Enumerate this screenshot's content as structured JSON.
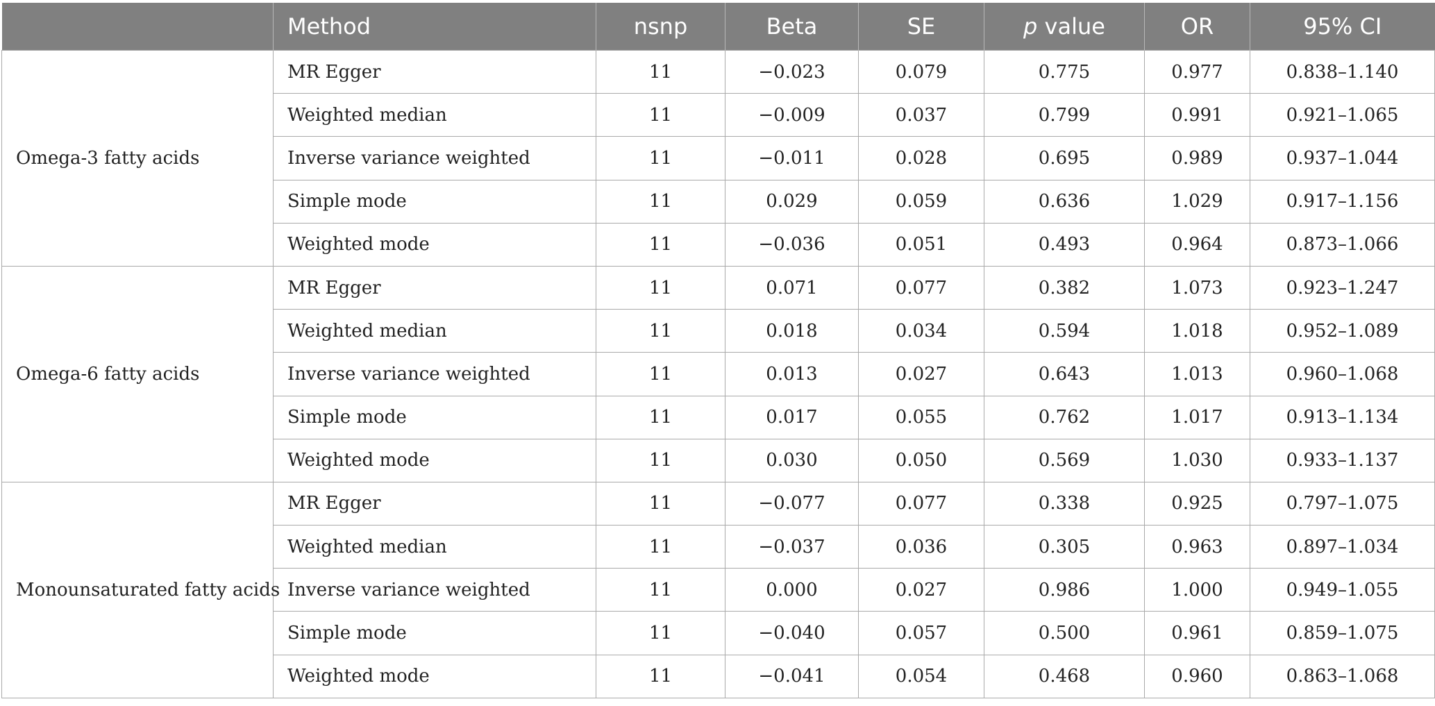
{
  "table": {
    "headers": {
      "group": "",
      "method": "Method",
      "nsnp": "nsnp",
      "beta": "Beta",
      "se": "SE",
      "p_italic": "p",
      "p_rest": " value",
      "or": "OR",
      "ci": "95% CI"
    },
    "groups": [
      {
        "name": "Omega-3 fatty acids",
        "rows": [
          {
            "method": "MR Egger",
            "nsnp": "11",
            "beta": "−0.023",
            "se": "0.079",
            "p": "0.775",
            "or": "0.977",
            "ci": "0.838–1.140"
          },
          {
            "method": "Weighted median",
            "nsnp": "11",
            "beta": "−0.009",
            "se": "0.037",
            "p": "0.799",
            "or": "0.991",
            "ci": "0.921–1.065"
          },
          {
            "method": "Inverse variance weighted",
            "nsnp": "11",
            "beta": "−0.011",
            "se": "0.028",
            "p": "0.695",
            "or": "0.989",
            "ci": "0.937–1.044"
          },
          {
            "method": "Simple mode",
            "nsnp": "11",
            "beta": "0.029",
            "se": "0.059",
            "p": "0.636",
            "or": "1.029",
            "ci": "0.917–1.156"
          },
          {
            "method": "Weighted mode",
            "nsnp": "11",
            "beta": "−0.036",
            "se": "0.051",
            "p": "0.493",
            "or": "0.964",
            "ci": "0.873–1.066"
          }
        ]
      },
      {
        "name": "Omega-6 fatty acids",
        "rows": [
          {
            "method": "MR Egger",
            "nsnp": "11",
            "beta": "0.071",
            "se": "0.077",
            "p": "0.382",
            "or": "1.073",
            "ci": "0.923–1.247"
          },
          {
            "method": "Weighted median",
            "nsnp": "11",
            "beta": "0.018",
            "se": "0.034",
            "p": "0.594",
            "or": "1.018",
            "ci": "0.952–1.089"
          },
          {
            "method": "Inverse variance weighted",
            "nsnp": "11",
            "beta": "0.013",
            "se": "0.027",
            "p": "0.643",
            "or": "1.013",
            "ci": "0.960–1.068"
          },
          {
            "method": "Simple mode",
            "nsnp": "11",
            "beta": "0.017",
            "se": "0.055",
            "p": "0.762",
            "or": "1.017",
            "ci": "0.913–1.134"
          },
          {
            "method": "Weighted mode",
            "nsnp": "11",
            "beta": "0.030",
            "se": "0.050",
            "p": "0.569",
            "or": "1.030",
            "ci": "0.933–1.137"
          }
        ]
      },
      {
        "name": "Monounsaturated fatty acids",
        "rows": [
          {
            "method": "MR Egger",
            "nsnp": "11",
            "beta": "−0.077",
            "se": "0.077",
            "p": "0.338",
            "or": "0.925",
            "ci": "0.797–1.075"
          },
          {
            "method": "Weighted median",
            "nsnp": "11",
            "beta": "−0.037",
            "se": "0.036",
            "p": "0.305",
            "or": "0.963",
            "ci": "0.897–1.034"
          },
          {
            "method": "Inverse variance weighted",
            "nsnp": "11",
            "beta": "0.000",
            "se": "0.027",
            "p": "0.986",
            "or": "1.000",
            "ci": "0.949–1.055"
          },
          {
            "method": "Simple mode",
            "nsnp": "11",
            "beta": "−0.040",
            "se": "0.057",
            "p": "0.500",
            "or": "0.961",
            "ci": "0.859–1.075"
          },
          {
            "method": "Weighted mode",
            "nsnp": "11",
            "beta": "−0.041",
            "se": "0.054",
            "p": "0.468",
            "or": "0.960",
            "ci": "0.863–1.068"
          }
        ]
      }
    ]
  }
}
